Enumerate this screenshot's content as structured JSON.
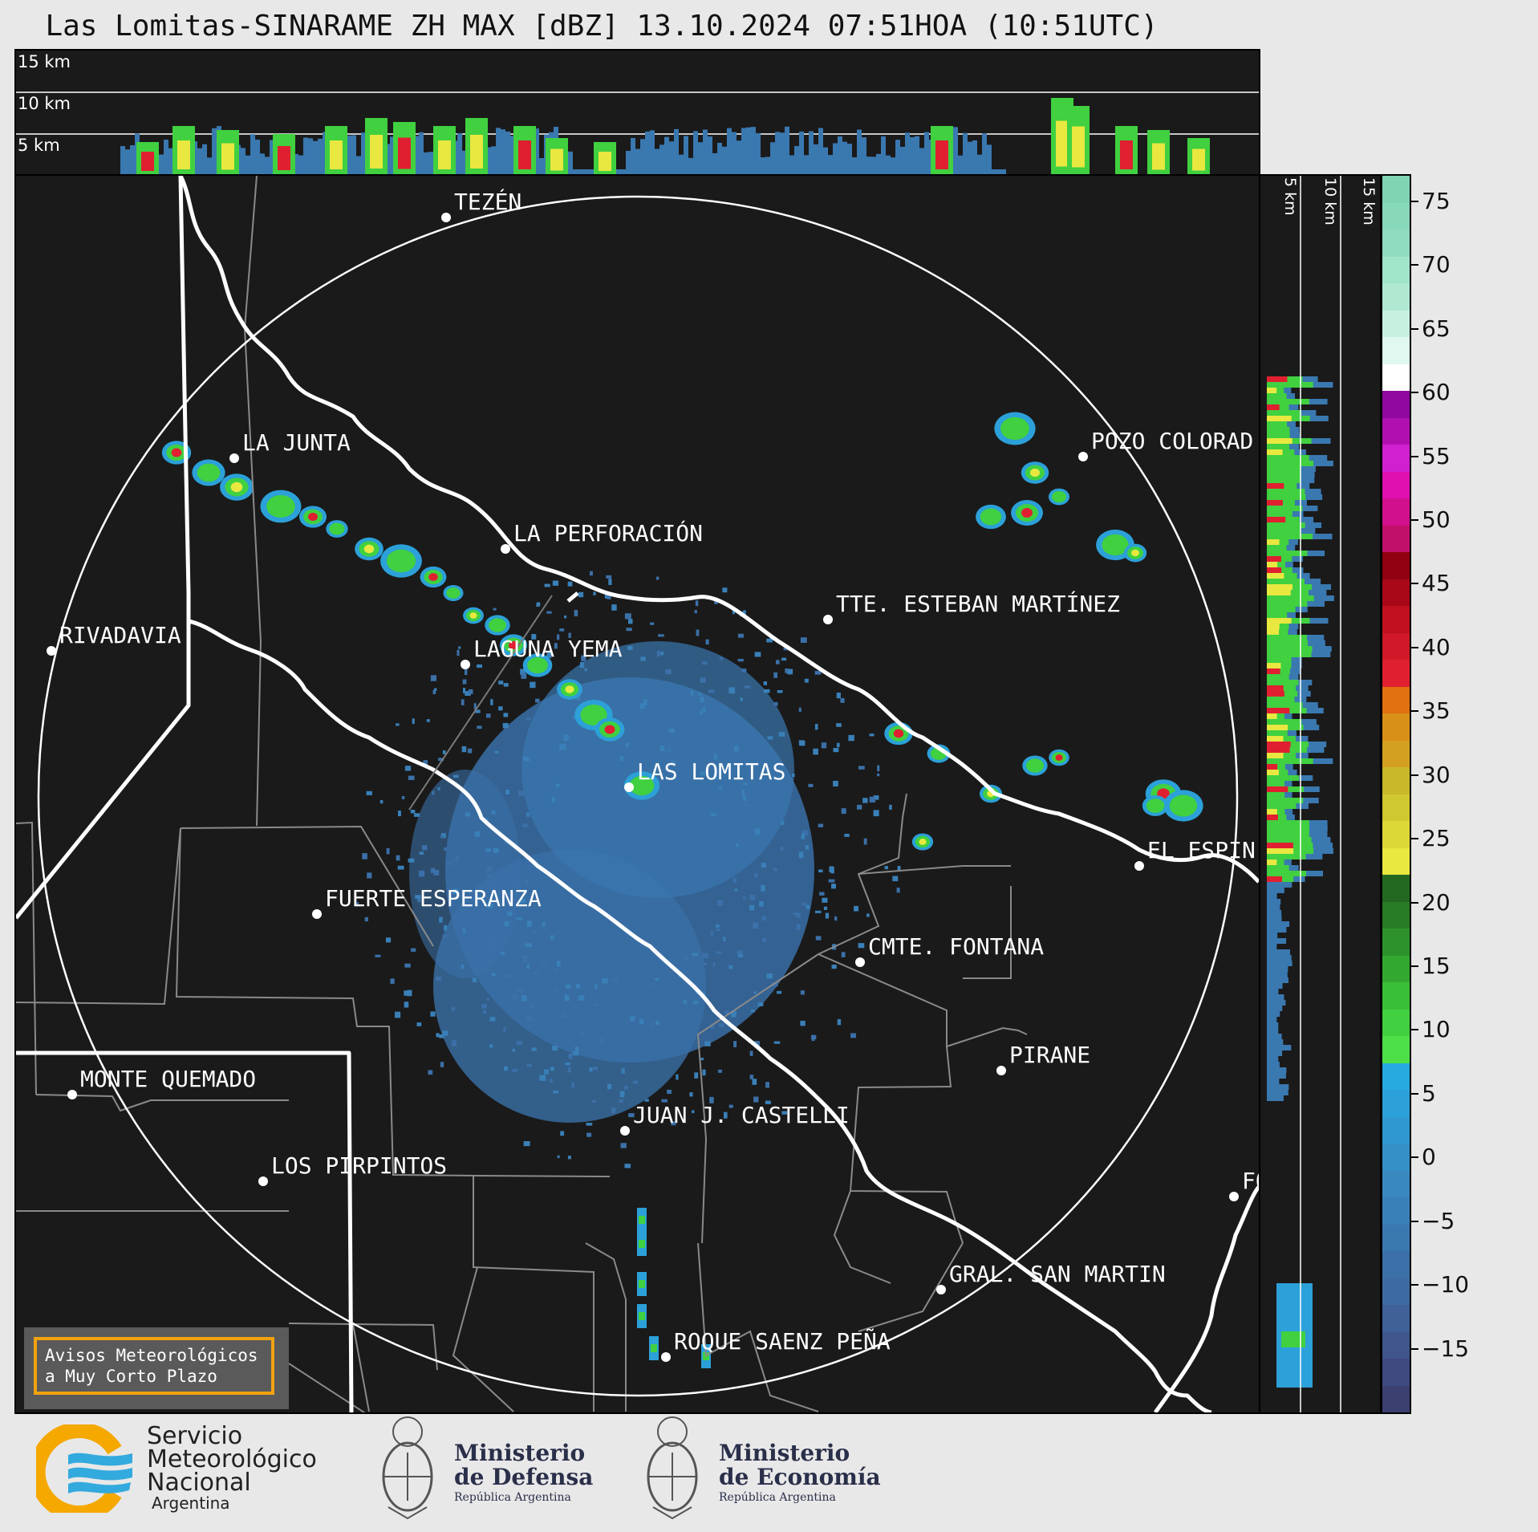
{
  "title": "Las Lomitas-SINARAME ZH MAX [dBZ] 13.10.2024 07:51HOA (10:51UTC)",
  "height_labels": {
    "h15": "15 km",
    "h10": "10 km",
    "h5": "5 km"
  },
  "cities": [
    {
      "id": "tezen",
      "name": "TEZÉN"
    },
    {
      "id": "la-junta",
      "name": "LA JUNTA"
    },
    {
      "id": "pozo-colorado",
      "name": "POZO COLORAD"
    },
    {
      "id": "la-perforacion",
      "name": "LA PERFORACIÓN"
    },
    {
      "id": "tte-esteban-martinez",
      "name": "TTE. ESTEBAN MARTÍNEZ"
    },
    {
      "id": "rivadavia",
      "name": "RIVADAVIA"
    },
    {
      "id": "laguna-yema",
      "name": "LAGUNA YEMA"
    },
    {
      "id": "las-lomitas",
      "name": "LAS LOMITAS"
    },
    {
      "id": "el-espin",
      "name": "EL ESPIN"
    },
    {
      "id": "fuerte-esperanza",
      "name": "FUERTE ESPERANZA"
    },
    {
      "id": "cmte-fontana",
      "name": "CMTE. FONTANA"
    },
    {
      "id": "pirane",
      "name": "PIRANE"
    },
    {
      "id": "monte-quemado",
      "name": "MONTE QUEMADO"
    },
    {
      "id": "juan-castelli",
      "name": "JUAN J. CASTELLI"
    },
    {
      "id": "los-pirpintos",
      "name": "LOS PIRPINTOS"
    },
    {
      "id": "gral-san-martin",
      "name": "GRAL. SAN MARTIN"
    },
    {
      "id": "roque-saenz-pena",
      "name": "ROQUE SAENZ PEÑA"
    },
    {
      "id": "fo",
      "name": "FO"
    }
  ],
  "colorbar": {
    "ticks": [
      "75",
      "70",
      "65",
      "60",
      "55",
      "50",
      "45",
      "40",
      "35",
      "30",
      "25",
      "20",
      "15",
      "10",
      "5",
      "0",
      "−5",
      "−10",
      "−15"
    ],
    "range": [
      -20,
      77
    ],
    "colors": [
      "#3c4070",
      "#3e4a80",
      "#3f558c",
      "#3f6198",
      "#3e6aa3",
      "#3b70a8",
      "#3a78b0",
      "#3a80b8",
      "#3a88c0",
      "#3590c8",
      "#2f98d0",
      "#2ca0d8",
      "#27aadf",
      "#4de048",
      "#40d040",
      "#3abf38",
      "#33a830",
      "#2d922b",
      "#287c26",
      "#236821",
      "#e8e840",
      "#dcd838",
      "#d0c830",
      "#c8b82a",
      "#d4a020",
      "#d89018",
      "#e07010",
      "#e02030",
      "#d01828",
      "#c01020",
      "#a80818",
      "#900010",
      "#c0106a",
      "#d0108c",
      "#e010b0",
      "#d020d0",
      "#b010b0",
      "#9008a0",
      "#ffffff",
      "#e0f8ef",
      "#c8f0e0",
      "#b0e8d2",
      "#a0e4ca",
      "#90dcc0",
      "#88d8ba",
      "#80d4b4"
    ]
  },
  "avisos": {
    "line1": "Avisos Meteorológicos",
    "line2": "a Muy Corto Plazo"
  },
  "logos": {
    "smn": {
      "l1": "Servicio",
      "l2": "Meteorológico",
      "l3": "Nacional",
      "l4": "Argentina"
    },
    "defensa": {
      "l1": "Ministerio",
      "l2": "de Defensa",
      "l3": "República Argentina"
    },
    "economia": {
      "l1": "Ministerio",
      "l2": "de Economía",
      "l3": "República Argentina"
    }
  }
}
